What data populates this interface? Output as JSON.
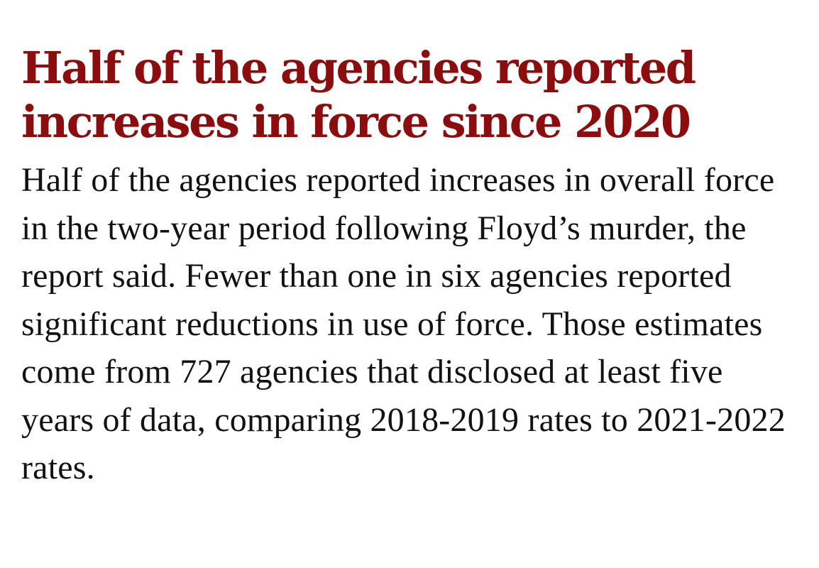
{
  "article": {
    "headline": "Half of the agencies reported increases in force since 2020",
    "body": "Half of the agencies reported increases in overall force in the two-year period following Floyd’s murder, the report said. Fewer than one in six agencies reported significant reductions in use of force. Those estimates come from 727 agencies that disclosed at least five years of data, comparing 2018-2019 rates to 2021-2022 rates."
  },
  "colors": {
    "headline": "#8b0d0d",
    "body": "#121212",
    "background": "#ffffff"
  }
}
